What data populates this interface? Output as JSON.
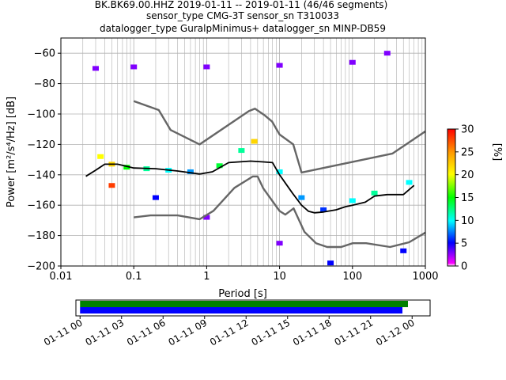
{
  "title": {
    "line1": "BK.BK69.00.HHZ   2019-01-11 -- 2019-01-11  (46/46 segments)",
    "line2": "sensor_type CMG-3T sensor_sn T310033",
    "line3": "datalogger_type GuralpMinimus+ datalogger_sn MINP-DB59"
  },
  "chart_data": [
    {
      "type": "heatmap",
      "xlabel": "Period [s]",
      "ylabel": "Power [m²/s⁴/Hz] [dB]",
      "xscale": "log",
      "xlim": [
        0.01,
        1000
      ],
      "ylim": [
        -200,
        -50
      ],
      "grid": true,
      "x_ticks": [
        0.01,
        0.1,
        1,
        10,
        100,
        1000
      ],
      "x_tick_labels": [
        "0.01",
        "0.1",
        "1",
        "10",
        "100",
        "1000"
      ],
      "y_ticks": [
        -200,
        -180,
        -160,
        -140,
        -120,
        -100,
        -80,
        -60
      ],
      "y_tick_labels": [
        "−200",
        "−180",
        "−160",
        "−140",
        "−120",
        "−100",
        "−80",
        "−60"
      ],
      "colormap": [
        "#ffffff",
        "#ff00ff",
        "#0000ff",
        "#00ffff",
        "#00ff00",
        "#ffff00",
        "#ff9900",
        "#ff0000"
      ],
      "colorbar": {
        "label": "[%]",
        "ticks": [
          0,
          5,
          10,
          15,
          20,
          25,
          30
        ],
        "range": [
          0,
          30
        ]
      },
      "series": [
        {
          "name": "",
          "style": "noise-model-upper",
          "color": "#666666",
          "x": [
            0.1,
            0.22,
            0.32,
            0.8,
            3.8,
            4.6,
            6.3,
            7.9,
            10,
            15.4,
            20,
            354.8,
            1000
          ],
          "y": [
            -91.5,
            -97.4,
            -110.5,
            -120,
            -98,
            -96.5,
            -101,
            -105,
            -113.5,
            -120,
            -138.5,
            -126,
            -111.4
          ]
        },
        {
          "name": "",
          "style": "noise-model-lower",
          "color": "#666666",
          "x": [
            0.1,
            0.17,
            0.4,
            0.8,
            1.24,
            2.4,
            4.3,
            5,
            6,
            10,
            12,
            15.6,
            21.9,
            31.6,
            45,
            70,
            101,
            154,
            328,
            600,
            1000
          ],
          "y": [
            -168,
            -166.7,
            -166.7,
            -169.2,
            -163.7,
            -148.6,
            -141.1,
            -141.1,
            -149,
            -163.8,
            -166.2,
            -162.1,
            -177.5,
            -185,
            -187.5,
            -187.5,
            -185,
            -185,
            -187.5,
            -184.4,
            -178
          ]
        },
        {
          "name": "",
          "style": "mode",
          "color": "#000000",
          "x": [
            0.022,
            0.03,
            0.04,
            0.06,
            0.1,
            0.2,
            0.4,
            0.8,
            1.2,
            2,
            4,
            6,
            8,
            10,
            15,
            20,
            25,
            30,
            40,
            60,
            80,
            100,
            150,
            200,
            300,
            500,
            700
          ],
          "y": [
            -141,
            -137,
            -133,
            -133,
            -135.5,
            -136,
            -137.5,
            -139.5,
            -138,
            -132,
            -131,
            -131.5,
            -132,
            -140,
            -152,
            -160,
            -164,
            -165,
            -164.5,
            -163,
            -161,
            -160,
            -158,
            -154,
            -153,
            -153,
            -147
          ]
        },
        {
          "name": "",
          "style": "heatmap-band",
          "cells": [
            {
              "p": 0.035,
              "db": -128,
              "pct": 20
            },
            {
              "p": 0.05,
              "db": -133,
              "pct": 22
            },
            {
              "p": 0.08,
              "db": -135,
              "pct": 15
            },
            {
              "p": 0.15,
              "db": -136,
              "pct": 12
            },
            {
              "p": 0.3,
              "db": -137,
              "pct": 10
            },
            {
              "p": 0.6,
              "db": -138,
              "pct": 8
            },
            {
              "p": 1.5,
              "db": -134,
              "pct": 14
            },
            {
              "p": 3,
              "db": -124,
              "pct": 12
            },
            {
              "p": 4.5,
              "db": -118,
              "pct": 22
            },
            {
              "p": 10,
              "db": -138,
              "pct": 10
            },
            {
              "p": 20,
              "db": -155,
              "pct": 8
            },
            {
              "p": 40,
              "db": -163,
              "pct": 6
            },
            {
              "p": 100,
              "db": -157,
              "pct": 10
            },
            {
              "p": 200,
              "db": -152,
              "pct": 12
            },
            {
              "p": 600,
              "db": -145,
              "pct": 10
            },
            {
              "p": 0.03,
              "db": -70,
              "pct": 3
            },
            {
              "p": 0.1,
              "db": -69,
              "pct": 3
            },
            {
              "p": 1,
              "db": -69,
              "pct": 3
            },
            {
              "p": 10,
              "db": -68,
              "pct": 3
            },
            {
              "p": 100,
              "db": -66,
              "pct": 3
            },
            {
              "p": 300,
              "db": -60,
              "pct": 3
            },
            {
              "p": 0.05,
              "db": -147,
              "pct": 28
            },
            {
              "p": 0.2,
              "db": -155,
              "pct": 5
            },
            {
              "p": 1,
              "db": -168,
              "pct": 3
            },
            {
              "p": 10,
              "db": -185,
              "pct": 3
            },
            {
              "p": 50,
              "db": -198,
              "pct": 5
            },
            {
              "p": 500,
              "db": -190,
              "pct": 5
            }
          ]
        }
      ]
    },
    {
      "type": "bar",
      "xlabel": "",
      "ylabel": "",
      "x_tick_labels": [
        "01-11 00",
        "01-11 03",
        "01-11 06",
        "01-11 09",
        "01-11 12",
        "01-11 15",
        "01-11 18",
        "01-11 21",
        "01-12 00"
      ],
      "x_range_hours": [
        -0.3,
        25.3
      ],
      "series": [
        {
          "name": "",
          "color": "#008000",
          "start_hour": 0,
          "end_hour": 23.7
        },
        {
          "name": "",
          "color": "#0000ff",
          "start_hour": 0,
          "end_hour": 23.3
        }
      ]
    }
  ]
}
